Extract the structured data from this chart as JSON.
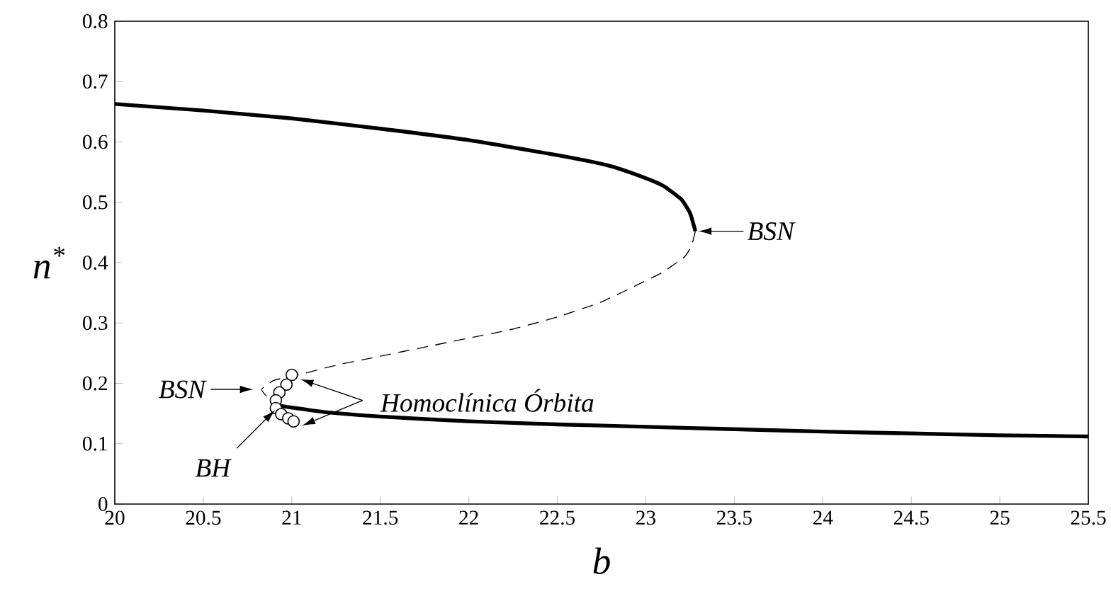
{
  "chart_data": {
    "type": "line",
    "xlabel": "b",
    "ylabel": "n$^{*}$",
    "xlim": [
      20,
      25.5
    ],
    "ylim": [
      0,
      0.8
    ],
    "xticks": [
      20,
      20.5,
      21,
      21.5,
      22,
      22.5,
      23,
      23.5,
      24,
      24.5,
      25,
      25.5
    ],
    "yticks": [
      0,
      0.1,
      0.2,
      0.3,
      0.4,
      0.5,
      0.6,
      0.7,
      0.8
    ],
    "grid": false,
    "series": [
      {
        "color": "#000000",
        "line_style": "solid",
        "marker": "none",
        "x": [
          20,
          20.5,
          21,
          21.5,
          22,
          22.5,
          22.8,
          23,
          23.1,
          23.2,
          23.25,
          23.28
        ],
        "values": [
          0.663,
          0.652,
          0.639,
          0.622,
          0.603,
          0.578,
          0.56,
          0.54,
          0.527,
          0.505,
          0.482,
          0.452
        ]
      },
      {
        "color": "#000000",
        "line_style": "dashed",
        "marker": "none",
        "x": [
          23.28,
          23.26,
          23.22,
          23.1,
          23,
          22.75,
          22.5,
          22.25,
          22,
          21.75,
          21.5,
          21.25,
          21.05,
          20.9,
          20.83,
          20.87,
          20.93
        ],
        "values": [
          0.452,
          0.43,
          0.41,
          0.385,
          0.37,
          0.335,
          0.31,
          0.29,
          0.275,
          0.26,
          0.245,
          0.23,
          0.215,
          0.205,
          0.19,
          0.175,
          0.163
        ]
      },
      {
        "color": "#000000",
        "line_style": "solid",
        "marker": "none",
        "x": [
          20.93,
          21.2,
          21.5,
          22,
          22.5,
          23,
          23.5,
          24,
          24.5,
          25,
          25.5
        ],
        "values": [
          0.163,
          0.152,
          0.145,
          0.137,
          0.132,
          0.128,
          0.124,
          0.12,
          0.117,
          0.114,
          0.112
        ]
      },
      {
        "type": "scatter",
        "color": "#000000",
        "marker": "circle",
        "x": [
          21.0,
          20.97,
          20.93,
          20.91,
          20.91,
          20.94,
          20.98,
          21.01
        ],
        "values": [
          0.214,
          0.198,
          0.185,
          0.172,
          0.159,
          0.149,
          0.142,
          0.137
        ]
      }
    ],
    "annotations": [
      {
        "text": "BSN",
        "x": 23.28,
        "y": 0.452
      },
      {
        "text": "BSN",
        "x": 20.83,
        "y": 0.19
      },
      {
        "text": "BH",
        "x": 20.93,
        "y": 0.163
      },
      "Homoclínica Órbita"
    ]
  }
}
